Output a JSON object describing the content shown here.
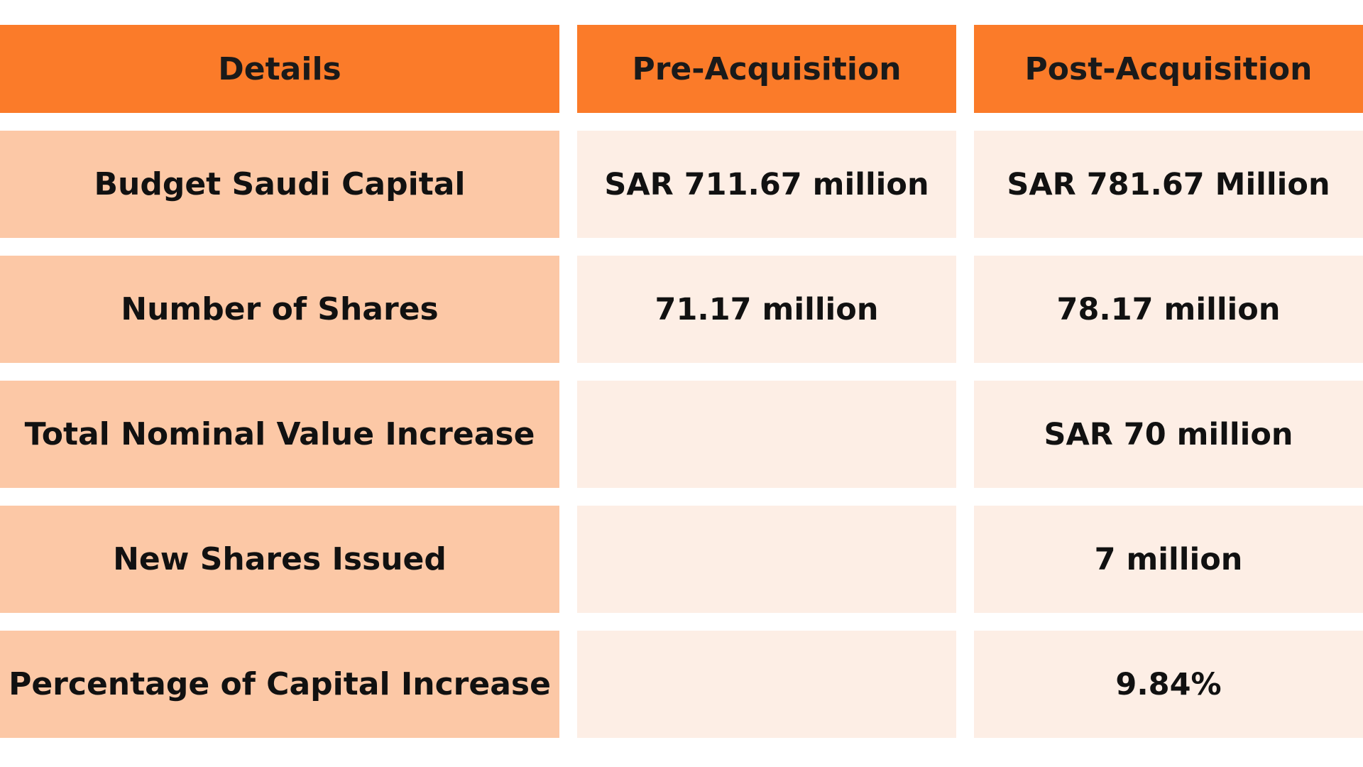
{
  "colors": {
    "header_bg": "#fb7b29",
    "label_bg": "#fcc8a6",
    "value_bg": "#fdeee5",
    "text": "#111111"
  },
  "table": {
    "headers": [
      "Details",
      "Pre-Acquisition",
      "Post-Acquisition"
    ],
    "rows": [
      {
        "label": "Budget Saudi Capital",
        "pre": "SAR 711.67 million",
        "post": "SAR 781.67 Million"
      },
      {
        "label": "Number of Shares",
        "pre": "71.17 million",
        "post": "78.17 million"
      },
      {
        "label": "Total Nominal Value Increase",
        "pre": "",
        "post": "SAR 70 million"
      },
      {
        "label": "New Shares Issued",
        "pre": "",
        "post": "7 million"
      },
      {
        "label": "Percentage of Capital Increase",
        "pre": "",
        "post": "9.84%"
      }
    ]
  }
}
